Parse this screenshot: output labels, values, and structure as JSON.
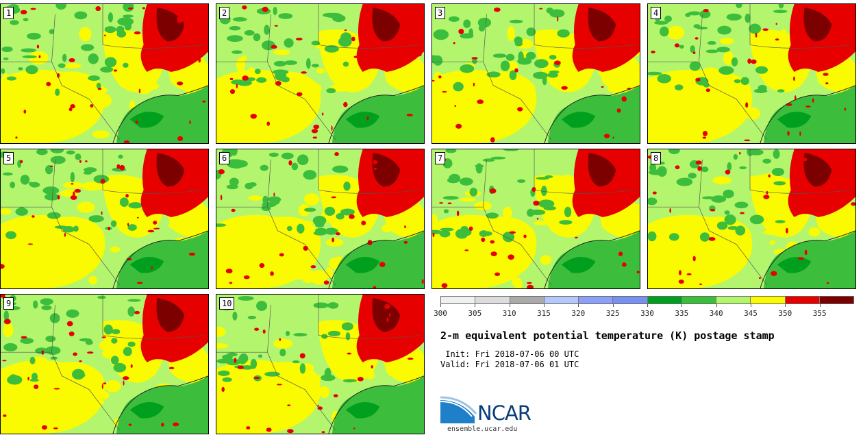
{
  "panels": [
    {
      "label": "1"
    },
    {
      "label": "2"
    },
    {
      "label": "3"
    },
    {
      "label": "4"
    },
    {
      "label": "5"
    },
    {
      "label": "6"
    },
    {
      "label": "7"
    },
    {
      "label": "8"
    },
    {
      "label": "9"
    },
    {
      "label": "10"
    }
  ],
  "colorbar": {
    "colors": [
      "#f0f0f0",
      "#dcdcdc",
      "#aaaaaa",
      "#b4c8fa",
      "#8ca0fa",
      "#7890f0",
      "#00a01e",
      "#3cbe3c",
      "#b4f56e",
      "#fafa00",
      "#e60000",
      "#7d0000"
    ],
    "tick_labels": [
      "300",
      "305",
      "310",
      "315",
      "320",
      "325",
      "330",
      "335",
      "340",
      "345",
      "350",
      "355"
    ]
  },
  "title": "2-m equivalent potential temperature (K) postage stamp",
  "init_text": " Init: Fri 2018-07-06 00 UTC",
  "valid_text": "Valid: Fri 2018-07-06 01 UTC",
  "logo": {
    "text": "NCAR"
  },
  "website": "ensemble.ucar.edu"
}
